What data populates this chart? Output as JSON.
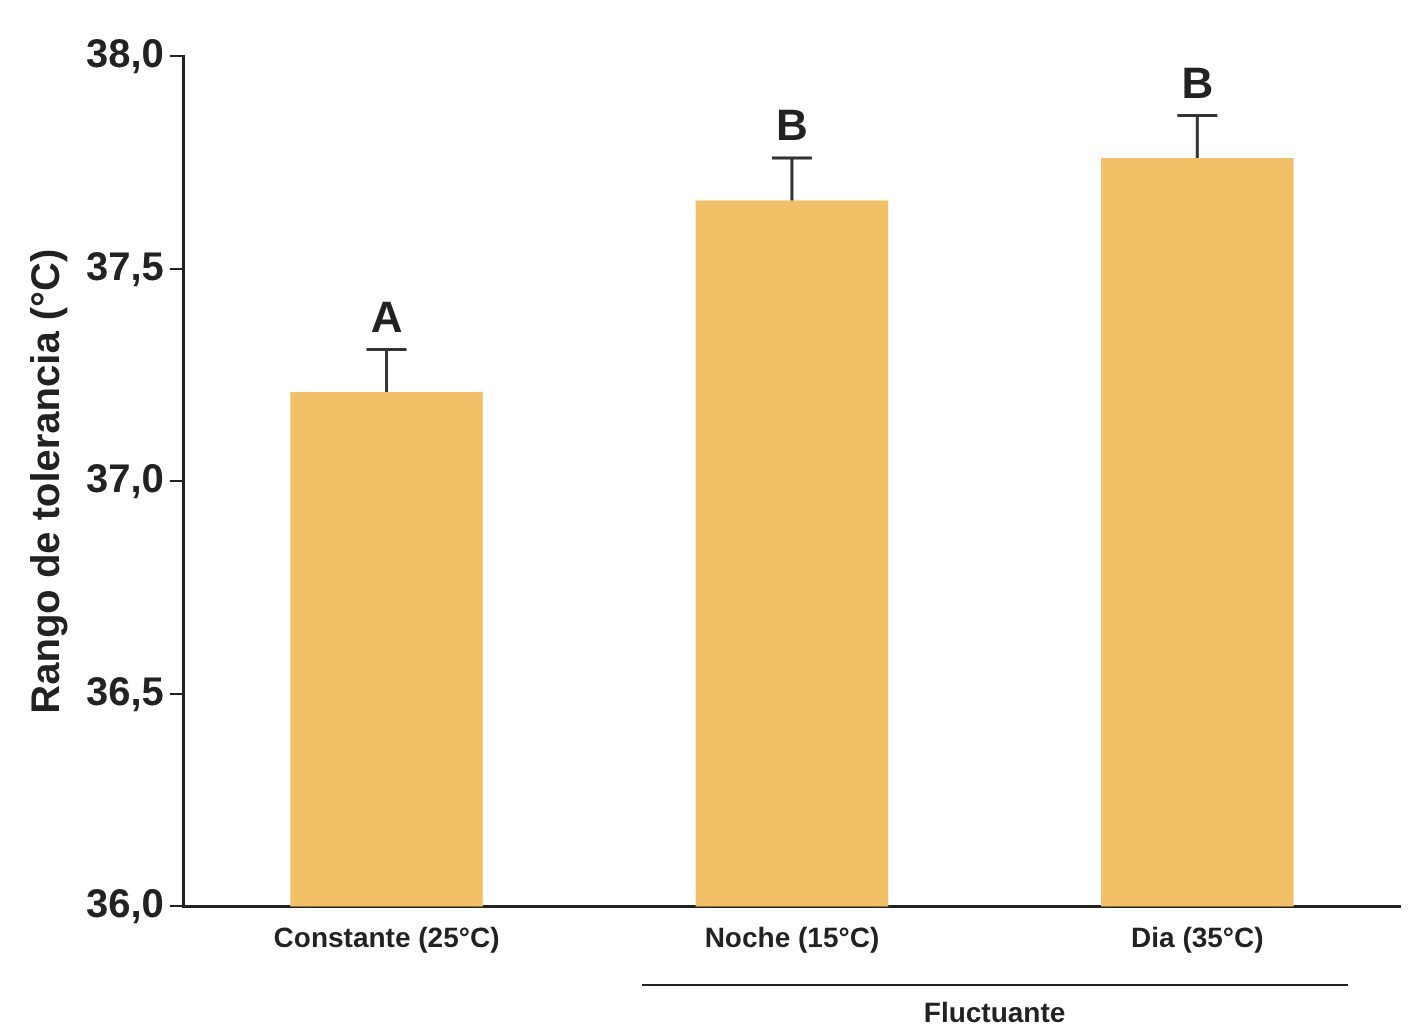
{
  "chart_data": {
    "type": "bar",
    "ylabel": "Rango de tolerancia (°C)",
    "categories": [
      "Constante (25°C)",
      "Noche (15°C)",
      "Dia (35°C)"
    ],
    "values": [
      37.21,
      37.66,
      37.76
    ],
    "errors": [
      0.1,
      0.1,
      0.1
    ],
    "color": "#f2c066",
    "ylim": [
      36.0,
      38.0
    ],
    "yticks": [
      {
        "value": 36.0,
        "label": "36,0"
      },
      {
        "value": 36.5,
        "label": "36,5"
      },
      {
        "value": 37.0,
        "label": "37,0"
      },
      {
        "value": 37.5,
        "label": "37,5"
      },
      {
        "value": 38.0,
        "label": "38,0"
      }
    ],
    "grid": false,
    "legend": false,
    "annotations": [
      {
        "text": "A",
        "x": "Constante (25°C)",
        "y": 37.31
      },
      {
        "text": "B",
        "x": "Noche (15°C)",
        "y": 37.76
      },
      {
        "text": "B",
        "x": "Dia (35°C)",
        "y": 37.86
      },
      "Fluctuante"
    ]
  }
}
